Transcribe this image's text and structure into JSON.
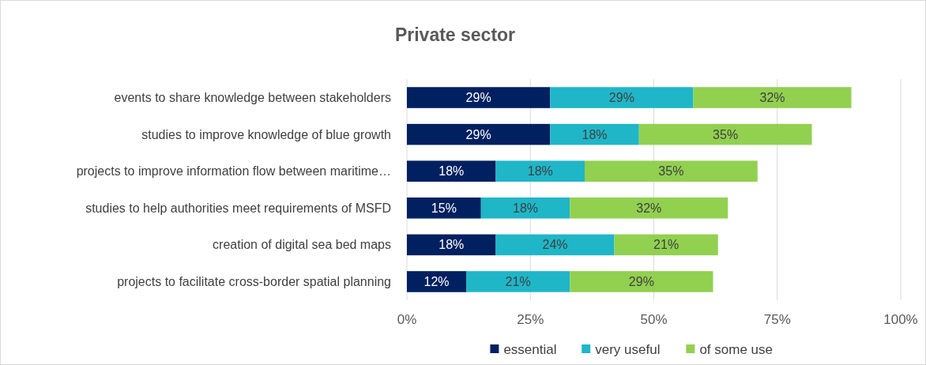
{
  "chart_data": {
    "type": "bar",
    "orientation": "horizontal",
    "stacked": true,
    "title": "Private sector",
    "categories": [
      "events to share knowledge between stakeholders",
      "studies to improve knowledge of blue growth",
      "projects to improve information flow between maritime…",
      "studies to help authorities meet requirements of MSFD",
      "creation of digital sea bed maps",
      "projects to facilitate cross-border spatial planning"
    ],
    "series": [
      {
        "name": "essential",
        "color": "#002060",
        "values": [
          29,
          29,
          18,
          15,
          18,
          12
        ],
        "value_labels": [
          "29%",
          "29%",
          "18%",
          "15%",
          "18%",
          "12%"
        ]
      },
      {
        "name": "very useful",
        "color": "#1fb6c8",
        "values": [
          29,
          18,
          18,
          18,
          24,
          21
        ],
        "value_labels": [
          "29%",
          "18%",
          "18%",
          "18%",
          "24%",
          "21%"
        ]
      },
      {
        "name": "of some use",
        "color": "#92d050",
        "values": [
          32,
          35,
          35,
          32,
          21,
          29
        ],
        "value_labels": [
          "32%",
          "35%",
          "35%",
          "32%",
          "21%",
          "29%"
        ]
      }
    ],
    "xlim": [
      0,
      100
    ],
    "xticks": [
      {
        "value": 0,
        "label": "0%"
      },
      {
        "value": 25,
        "label": "25%"
      },
      {
        "value": 50,
        "label": "50%"
      },
      {
        "value": 75,
        "label": "75%"
      },
      {
        "value": 100,
        "label": "100%"
      }
    ],
    "grid": "x",
    "legend": "bottom"
  }
}
